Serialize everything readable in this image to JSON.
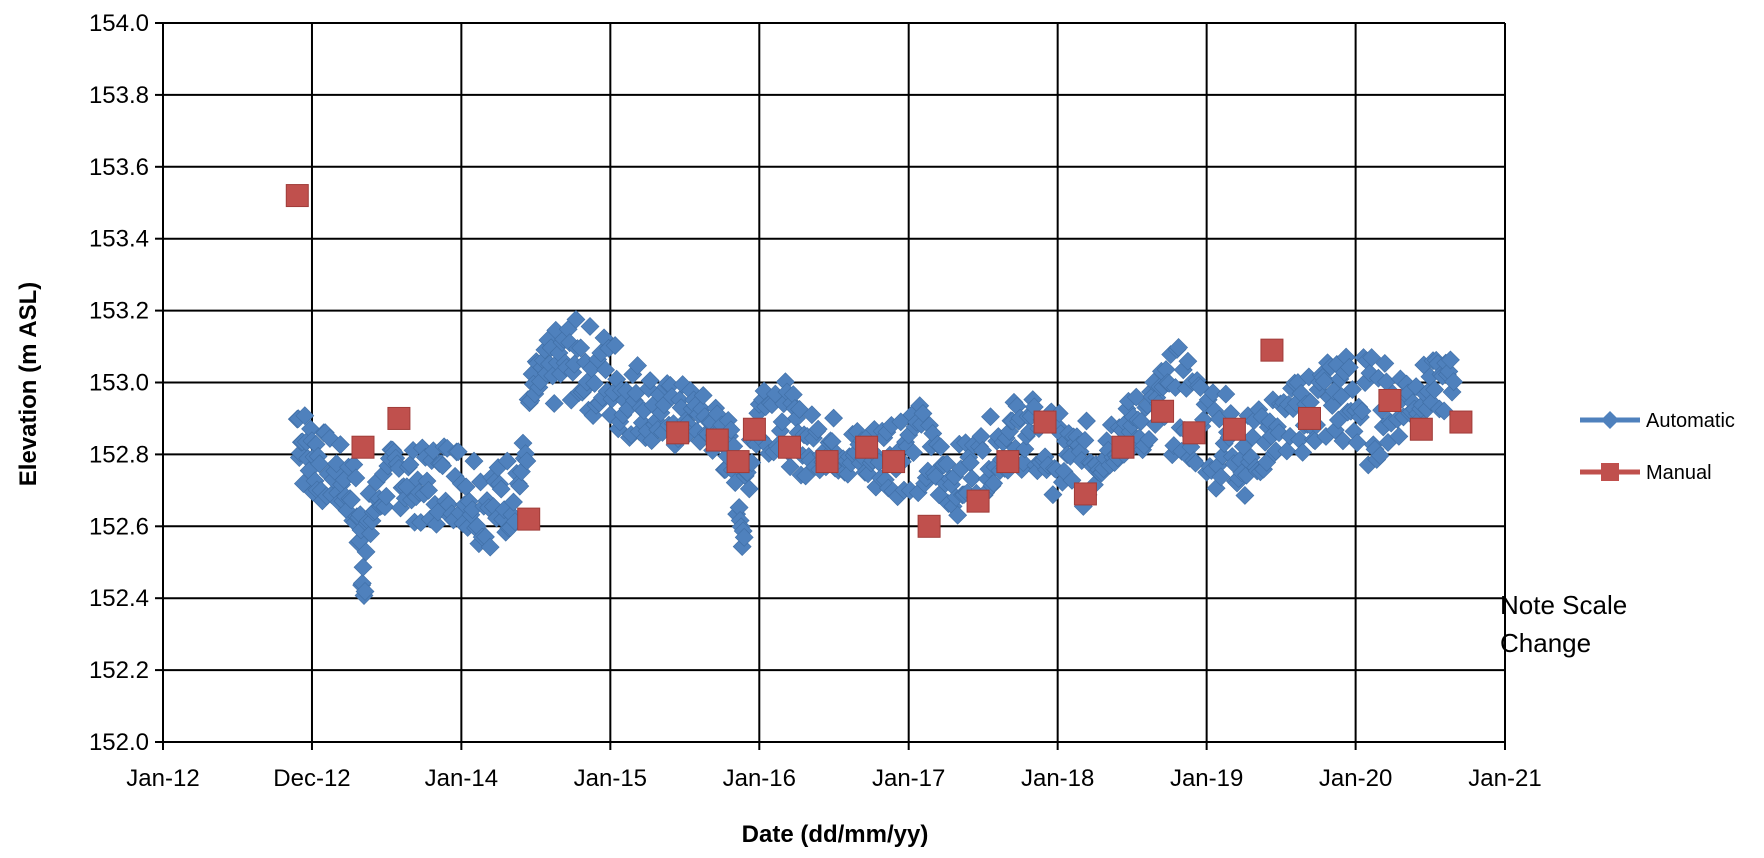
{
  "chart_data": {
    "type": "scatter",
    "title": "",
    "xlabel": "Date (dd/mm/yy)",
    "ylabel": "Elevation (m ASL)",
    "ylim": [
      152.0,
      154.0
    ],
    "yticks": [
      "152.0",
      "152.2",
      "152.4",
      "152.6",
      "152.8",
      "153.0",
      "153.2",
      "153.4",
      "153.6",
      "153.8",
      "154.0"
    ],
    "xlim": [
      "2012-01-01",
      "2021-01-01"
    ],
    "xticks": [
      {
        "label": "Jan-12",
        "date": "2012-01-01"
      },
      {
        "label": "Dec-12",
        "date": "2012-12-31"
      },
      {
        "label": "Jan-14",
        "date": "2014-01-01"
      },
      {
        "label": "Jan-15",
        "date": "2015-01-01"
      },
      {
        "label": "Jan-16",
        "date": "2016-01-01"
      },
      {
        "label": "Jan-17",
        "date": "2017-01-01"
      },
      {
        "label": "Jan-18",
        "date": "2018-01-01"
      },
      {
        "label": "Jan-19",
        "date": "2019-01-01"
      },
      {
        "label": "Jan-20",
        "date": "2020-01-01"
      },
      {
        "label": "Jan-21",
        "date": "2021-01-01"
      }
    ],
    "grid": true,
    "legend": "right",
    "annotation": "Note Scale Change",
    "series": [
      {
        "name": "Automatic",
        "color": "#4F81BD",
        "marker": "diamond",
        "x": [
          "2012-11-25",
          "2012-12-10",
          "2012-12-31",
          "2013-01-15",
          "2013-02-05",
          "2013-03-01",
          "2013-03-20",
          "2013-04-10",
          "2013-04-25",
          "2013-05-05",
          "2013-05-20",
          "2013-06-10",
          "2013-07-01",
          "2013-08-01",
          "2013-09-01",
          "2013-10-01",
          "2013-11-01",
          "2013-12-01",
          "2014-01-01",
          "2014-02-01",
          "2014-03-01",
          "2014-04-01",
          "2014-05-01",
          "2014-06-01",
          "2014-06-20",
          "2014-07-10",
          "2014-08-01",
          "2014-09-01",
          "2014-10-01",
          "2014-11-01",
          "2014-12-01",
          "2015-01-01",
          "2015-02-01",
          "2015-03-01",
          "2015-04-01",
          "2015-05-01",
          "2015-06-01",
          "2015-07-01",
          "2015-08-01",
          "2015-09-01",
          "2015-10-01",
          "2015-10-20",
          "2015-11-10",
          "2015-11-25",
          "2015-12-10",
          "2016-01-01",
          "2016-02-01",
          "2016-03-01",
          "2016-04-01",
          "2016-05-01",
          "2016-06-01",
          "2016-07-01",
          "2016-08-01",
          "2016-09-01",
          "2016-10-01",
          "2016-11-01",
          "2016-12-01",
          "2017-01-01",
          "2017-02-01",
          "2017-03-01",
          "2017-04-01",
          "2017-05-01",
          "2017-06-01",
          "2017-07-01",
          "2017-08-01",
          "2017-09-01",
          "2017-10-01",
          "2017-11-01",
          "2017-12-01",
          "2018-01-01",
          "2018-02-01",
          "2018-03-01",
          "2018-04-01",
          "2018-05-01",
          "2018-06-01",
          "2018-07-01",
          "2018-08-01",
          "2018-09-01",
          "2018-10-01",
          "2018-11-01",
          "2018-12-01",
          "2019-01-01",
          "2019-02-01",
          "2019-03-01",
          "2019-04-01",
          "2019-05-01",
          "2019-06-01",
          "2019-07-01",
          "2019-08-01",
          "2019-09-01",
          "2019-10-01",
          "2019-11-01",
          "2019-12-01",
          "2020-01-01",
          "2020-02-01",
          "2020-03-01",
          "2020-04-01",
          "2020-05-01",
          "2020-06-01",
          "2020-07-01",
          "2020-08-01",
          "2020-09-01"
        ],
        "y": [
          152.9,
          152.82,
          152.8,
          152.78,
          152.76,
          152.74,
          152.72,
          152.7,
          152.6,
          152.5,
          152.6,
          152.68,
          152.72,
          152.75,
          152.72,
          152.7,
          152.72,
          152.74,
          152.72,
          152.7,
          152.68,
          152.66,
          152.7,
          152.75,
          152.95,
          153.0,
          153.02,
          153.05,
          153.06,
          153.05,
          153.02,
          153.0,
          152.98,
          152.96,
          152.94,
          152.92,
          152.9,
          152.92,
          152.9,
          152.88,
          152.86,
          152.8,
          152.7,
          152.6,
          152.85,
          152.92,
          152.95,
          152.9,
          152.85,
          152.82,
          152.84,
          152.83,
          152.81,
          152.8,
          152.79,
          152.8,
          152.82,
          152.84,
          152.8,
          152.77,
          152.75,
          152.73,
          152.75,
          152.78,
          152.82,
          152.85,
          152.86,
          152.84,
          152.82,
          152.8,
          152.78,
          152.76,
          152.8,
          152.84,
          152.86,
          152.88,
          152.9,
          152.92,
          152.94,
          152.95,
          152.9,
          152.88,
          152.86,
          152.84,
          152.8,
          152.82,
          152.86,
          152.88,
          152.9,
          152.92,
          152.94,
          152.96,
          152.95,
          152.94,
          152.92,
          152.93,
          152.94,
          152.96,
          152.97,
          152.98,
          152.99,
          153.0
        ],
        "spread": [
          0.1,
          0.12,
          0.12,
          0.12,
          0.1,
          0.1,
          0.1,
          0.1,
          0.12,
          0.14,
          0.1,
          0.08,
          0.08,
          0.1,
          0.1,
          0.12,
          0.12,
          0.12,
          0.12,
          0.14,
          0.14,
          0.12,
          0.12,
          0.1,
          0.08,
          0.08,
          0.1,
          0.12,
          0.12,
          0.12,
          0.14,
          0.14,
          0.14,
          0.12,
          0.1,
          0.1,
          0.1,
          0.08,
          0.08,
          0.08,
          0.1,
          0.1,
          0.1,
          0.1,
          0.12,
          0.14,
          0.14,
          0.12,
          0.1,
          0.1,
          0.08,
          0.08,
          0.08,
          0.08,
          0.1,
          0.12,
          0.14,
          0.14,
          0.14,
          0.12,
          0.1,
          0.1,
          0.1,
          0.1,
          0.1,
          0.1,
          0.1,
          0.12,
          0.12,
          0.12,
          0.12,
          0.12,
          0.12,
          0.1,
          0.08,
          0.08,
          0.1,
          0.12,
          0.14,
          0.16,
          0.16,
          0.16,
          0.16,
          0.14,
          0.12,
          0.1,
          0.1,
          0.1,
          0.1,
          0.12,
          0.14,
          0.14,
          0.14,
          0.16,
          0.16,
          0.14,
          0.12,
          0.1,
          0.08,
          0.08,
          0.08,
          0.08
        ]
      },
      {
        "name": "Manual",
        "color": "#C0504D",
        "marker": "square",
        "x": [
          "2012-11-25",
          "2013-05-05",
          "2013-08-01",
          "2014-06-15",
          "2015-06-15",
          "2015-09-20",
          "2015-11-10",
          "2015-12-20",
          "2016-03-15",
          "2016-06-15",
          "2016-09-20",
          "2016-11-25",
          "2017-02-20",
          "2017-06-20",
          "2017-09-01",
          "2017-12-01",
          "2018-03-10",
          "2018-06-10",
          "2018-09-15",
          "2018-12-01",
          "2019-03-10",
          "2019-06-10",
          "2019-09-10",
          "2020-03-25",
          "2020-06-10",
          "2020-09-15"
        ],
        "y": [
          153.52,
          152.82,
          152.9,
          152.62,
          152.86,
          152.84,
          152.78,
          152.87,
          152.82,
          152.78,
          152.82,
          152.78,
          152.6,
          152.67,
          152.78,
          152.89,
          152.69,
          152.82,
          152.92,
          152.86,
          152.87,
          153.09,
          152.9,
          152.95,
          152.87,
          152.89
        ]
      }
    ]
  }
}
